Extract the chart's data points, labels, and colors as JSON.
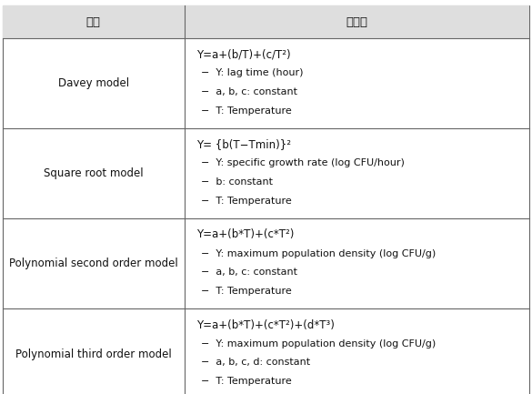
{
  "header": [
    "분류",
    "계산식"
  ],
  "col_split": 0.345,
  "rows": [
    {
      "left": "Davey model",
      "formula": "Y=a+(b/T)+(c/T²)",
      "bullets": [
        "−  Y: lag time (hour)",
        "−  a, b, c: constant",
        "−  T: Temperature"
      ]
    },
    {
      "left": "Square root model",
      "formula": "Y= {b(T−Tmin)}²",
      "bullets": [
        "−  Y: specific growth rate (log CFU/hour)",
        "−  b: constant",
        "−  T: Temperature"
      ]
    },
    {
      "left": "Polynomial second order model",
      "formula": "Y=a+(b*T)+(c*T²)",
      "bullets": [
        "−  Y: maximum population density (log CFU/g)",
        "−  a, b, c: constant",
        "−  T: Temperature"
      ]
    },
    {
      "left": "Polynomial third order model",
      "formula": "Y=a+(b*T)+(c*T²)+(d*T³)",
      "bullets": [
        "−  Y: maximum population density (log CFU/g)",
        "−  a, b, c, d: constant",
        "−  T: Temperature"
      ]
    }
  ],
  "header_bg": "#dedede",
  "border_color": "#666666",
  "text_color": "#111111",
  "font_size": 8.5,
  "header_font_size": 9.5,
  "figwidth": 5.85,
  "figheight": 4.33,
  "dpi": 100
}
